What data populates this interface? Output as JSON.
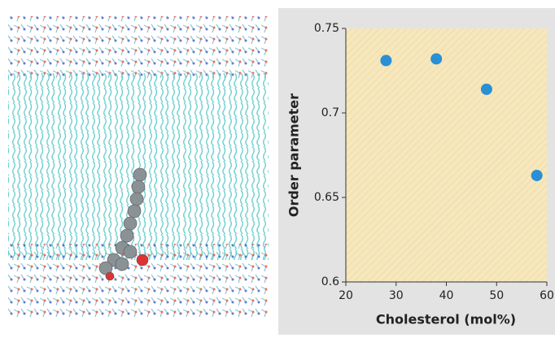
{
  "chart_data": {
    "type": "scatter",
    "x_label": "Cholesterol (mol%)",
    "y_label": "Order parameter",
    "x": [
      28,
      38,
      48,
      58
    ],
    "values": [
      0.731,
      0.732,
      0.714,
      0.663
    ],
    "color": "#2a8fd4",
    "xlim": [
      20,
      60
    ],
    "xticks": [
      20,
      30,
      40,
      50,
      60
    ],
    "ylim": [
      0.6,
      0.75
    ],
    "yticks": [
      0.6,
      0.65,
      0.7,
      0.75
    ]
  }
}
